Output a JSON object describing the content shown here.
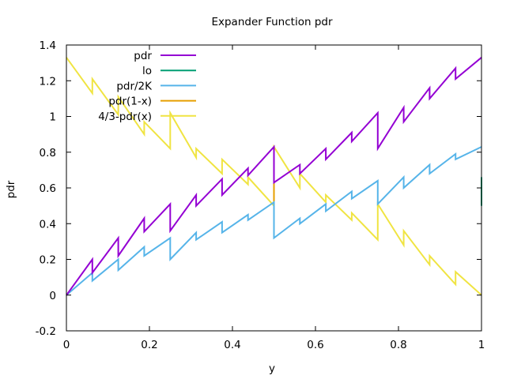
{
  "chart_data": {
    "type": "line",
    "title": "Expander Function pdr",
    "xlabel": "y",
    "ylabel": "pdr",
    "xlim": [
      0,
      1
    ],
    "ylim": [
      -0.2,
      1.4
    ],
    "xticks": [
      {
        "value": 0,
        "label": "0"
      },
      {
        "value": 0.2,
        "label": "0.2"
      },
      {
        "value": 0.4,
        "label": "0.4"
      },
      {
        "value": 0.6,
        "label": "0.6"
      },
      {
        "value": 0.8,
        "label": "0.8"
      },
      {
        "value": 1,
        "label": "1"
      }
    ],
    "yticks": [
      {
        "value": -0.2,
        "label": "-0.2"
      },
      {
        "value": 0,
        "label": "0"
      },
      {
        "value": 0.2,
        "label": "0.2"
      },
      {
        "value": 0.4,
        "label": "0.4"
      },
      {
        "value": 0.6,
        "label": "0.6"
      },
      {
        "value": 0.8,
        "label": "0.8"
      },
      {
        "value": 1,
        "label": "1"
      },
      {
        "value": 1.2,
        "label": "1.2"
      },
      {
        "value": 1.4,
        "label": "1.4"
      }
    ],
    "grid": false,
    "legend_position": "top-left",
    "series": [
      {
        "name": "pdr",
        "color": "#9400d3",
        "x": [
          0,
          0.0625,
          0.0625,
          0.125,
          0.125,
          0.1875,
          0.1875,
          0.25,
          0.25,
          0.3125,
          0.3125,
          0.375,
          0.375,
          0.4375,
          0.4375,
          0.5,
          0.5,
          0.5625,
          0.5625,
          0.625,
          0.625,
          0.6875,
          0.6875,
          0.75,
          0.75,
          0.8125,
          0.8125,
          0.875,
          0.875,
          0.9375,
          0.9375,
          1
        ],
        "y": [
          0,
          0.2,
          0.125,
          0.32,
          0.22,
          0.43,
          0.355,
          0.51,
          0.36,
          0.56,
          0.5,
          0.65,
          0.56,
          0.71,
          0.67,
          0.83,
          0.63,
          0.73,
          0.68,
          0.82,
          0.76,
          0.91,
          0.86,
          1.02,
          0.82,
          1.05,
          0.97,
          1.16,
          1.1,
          1.27,
          1.21,
          1.33
        ]
      },
      {
        "name": "lo",
        "color": "#009e73",
        "x": [
          1,
          1
        ],
        "y": [
          0.66,
          0.5
        ]
      },
      {
        "name": "pdr/2K",
        "color": "#56b4e9",
        "x": [
          0,
          0.0625,
          0.0625,
          0.125,
          0.125,
          0.1875,
          0.1875,
          0.25,
          0.25,
          0.3125,
          0.3125,
          0.375,
          0.375,
          0.4375,
          0.4375,
          0.5,
          0.5,
          0.5625,
          0.5625,
          0.625,
          0.625,
          0.6875,
          0.6875,
          0.75,
          0.75,
          0.8125,
          0.8125,
          0.875,
          0.875,
          0.9375,
          0.9375,
          1
        ],
        "y": [
          0,
          0.125,
          0.08,
          0.2,
          0.14,
          0.27,
          0.22,
          0.32,
          0.2,
          0.35,
          0.31,
          0.41,
          0.35,
          0.45,
          0.42,
          0.52,
          0.32,
          0.43,
          0.4,
          0.51,
          0.47,
          0.58,
          0.54,
          0.64,
          0.51,
          0.66,
          0.6,
          0.73,
          0.68,
          0.79,
          0.76,
          0.83
        ]
      },
      {
        "name": "pdr(1-x)",
        "color": "#e69f00",
        "x": [
          0.5,
          0.5
        ],
        "y": [
          0.83,
          0.5
        ]
      },
      {
        "name": "4/3-pdr(x)",
        "color": "#f0e442",
        "x": [
          0,
          0.0625,
          0.0625,
          0.125,
          0.125,
          0.1875,
          0.1875,
          0.25,
          0.25,
          0.3125,
          0.3125,
          0.375,
          0.375,
          0.4375,
          0.4375,
          0.5,
          0.5,
          0.5625,
          0.5625,
          0.625,
          0.625,
          0.6875,
          0.6875,
          0.75,
          0.75,
          0.8125,
          0.8125,
          0.875,
          0.875,
          0.9375,
          0.9375,
          1
        ],
        "y": [
          1.33,
          1.13,
          1.21,
          1.01,
          1.11,
          0.9,
          0.97,
          0.82,
          1.02,
          0.77,
          0.82,
          0.68,
          0.76,
          0.62,
          0.66,
          0.5,
          0.83,
          0.6,
          0.68,
          0.52,
          0.56,
          0.42,
          0.46,
          0.31,
          0.51,
          0.28,
          0.36,
          0.17,
          0.22,
          0.06,
          0.13,
          0
        ]
      }
    ]
  }
}
